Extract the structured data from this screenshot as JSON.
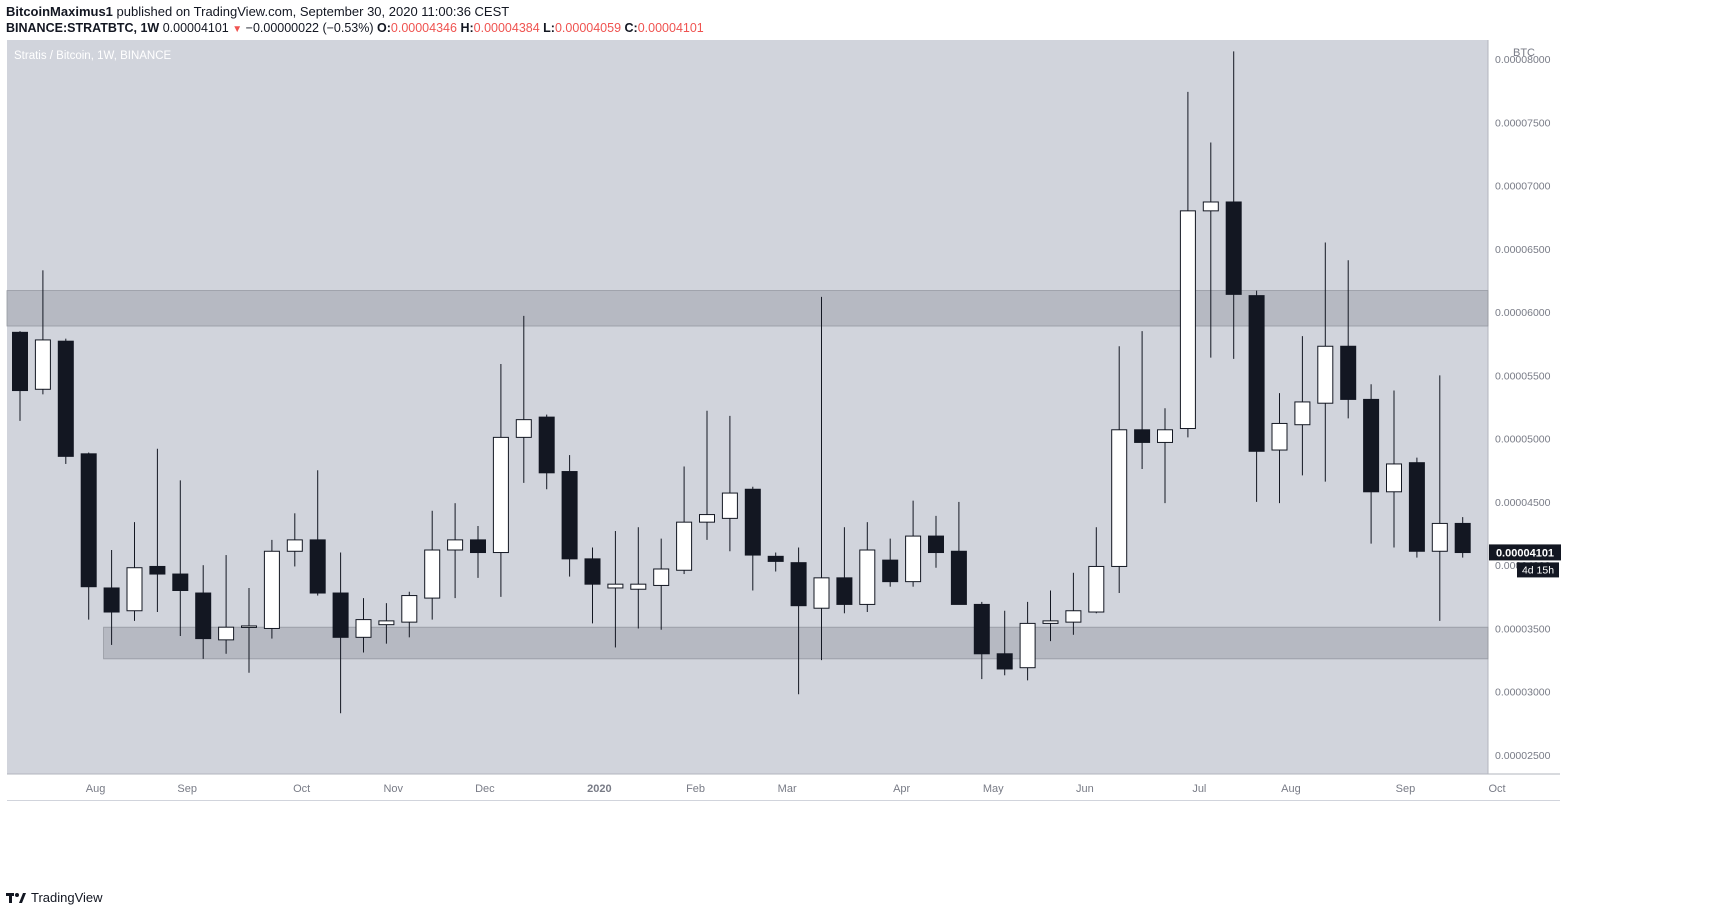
{
  "header": {
    "author": "BitcoinMaximus1",
    "published_text": "published on TradingView.com, September 30, 2020 11:00:36 CEST",
    "symbol": "BINANCE:STRATBTC, 1W",
    "last": "0.00004101",
    "change": "−0.00000022 (−0.53%)",
    "o_label": "O:",
    "o": "0.00004346",
    "h_label": "H:",
    "h": "0.00004384",
    "l_label": "L:",
    "l": "0.00004059",
    "c_label": "C:",
    "c": "0.00004101"
  },
  "footer": {
    "brand": "TradingView"
  },
  "chart_data": {
    "type": "candlestick",
    "title": "Stratis / Bitcoin, 1W, BINANCE",
    "currency_label": "BTC",
    "ylim": [
      2.35e-05,
      8.15e-05
    ],
    "y_ticks": [
      2.5e-05,
      3e-05,
      3.5e-05,
      4e-05,
      4.5e-05,
      5e-05,
      5.5e-05,
      6e-05,
      6.5e-05,
      7e-05,
      7.5e-05,
      8e-05
    ],
    "y_tick_labels": [
      "0.00002500",
      "0.00003000",
      "0.00003500",
      "0.00004000",
      "0.00004500",
      "0.00005000",
      "0.00005500",
      "0.00006000",
      "0.00006500",
      "0.00007000",
      "0.00007500",
      "0.00008000"
    ],
    "x_tick_labels": [
      {
        "label": "Aug",
        "index": 3.3
      },
      {
        "label": "Sep",
        "index": 7.3
      },
      {
        "label": "Oct",
        "index": 12.3
      },
      {
        "label": "Nov",
        "index": 16.3
      },
      {
        "label": "Dec",
        "index": 20.3
      },
      {
        "label": "2020",
        "index": 25.3
      },
      {
        "label": "Feb",
        "index": 29.5
      },
      {
        "label": "Mar",
        "index": 33.5
      },
      {
        "label": "Apr",
        "index": 38.5
      },
      {
        "label": "May",
        "index": 42.5
      },
      {
        "label": "Jun",
        "index": 46.5
      },
      {
        "label": "Jul",
        "index": 51.5
      },
      {
        "label": "Aug",
        "index": 55.5
      },
      {
        "label": "Sep",
        "index": 60.5
      },
      {
        "label": "Oct",
        "index": 64.5
      }
    ],
    "zones": [
      {
        "from": 5.89e-05,
        "to": 6.17e-05,
        "start_index": -1
      },
      {
        "from": 3.26e-05,
        "to": 3.51e-05,
        "start_index": 4
      }
    ],
    "price_label": "0.00004101",
    "countdown_label": "4d 15h",
    "last_price": 4.101e-05,
    "candles": [
      {
        "o": 5.84e-05,
        "h": 5.85e-05,
        "l": 5.14e-05,
        "c": 5.38e-05
      },
      {
        "o": 5.39e-05,
        "h": 6.33e-05,
        "l": 5.35e-05,
        "c": 5.78e-05
      },
      {
        "o": 5.77e-05,
        "h": 5.79e-05,
        "l": 4.8e-05,
        "c": 4.86e-05
      },
      {
        "o": 4.88e-05,
        "h": 4.89e-05,
        "l": 3.57e-05,
        "c": 3.83e-05
      },
      {
        "o": 3.82e-05,
        "h": 4.12e-05,
        "l": 3.37e-05,
        "c": 3.63e-05
      },
      {
        "o": 3.64e-05,
        "h": 4.34e-05,
        "l": 3.56e-05,
        "c": 3.98e-05
      },
      {
        "o": 3.99e-05,
        "h": 4.92e-05,
        "l": 3.63e-05,
        "c": 3.93e-05
      },
      {
        "o": 3.93e-05,
        "h": 4.67e-05,
        "l": 3.44e-05,
        "c": 3.8e-05
      },
      {
        "o": 3.78e-05,
        "h": 4e-05,
        "l": 3.26e-05,
        "c": 3.42e-05
      },
      {
        "o": 3.41e-05,
        "h": 4.08e-05,
        "l": 3.3e-05,
        "c": 3.51e-05
      },
      {
        "o": 3.51e-05,
        "h": 3.82e-05,
        "l": 3.15e-05,
        "c": 3.52e-05
      },
      {
        "o": 3.5e-05,
        "h": 4.2e-05,
        "l": 3.42e-05,
        "c": 4.11e-05
      },
      {
        "o": 4.11e-05,
        "h": 4.41e-05,
        "l": 3.99e-05,
        "c": 4.2e-05
      },
      {
        "o": 4.2e-05,
        "h": 4.75e-05,
        "l": 3.76e-05,
        "c": 3.78e-05
      },
      {
        "o": 3.78e-05,
        "h": 4.1e-05,
        "l": 2.83e-05,
        "c": 3.43e-05
      },
      {
        "o": 3.43e-05,
        "h": 3.74e-05,
        "l": 3.31e-05,
        "c": 3.57e-05
      },
      {
        "o": 3.53e-05,
        "h": 3.7e-05,
        "l": 3.38e-05,
        "c": 3.56e-05
      },
      {
        "o": 3.55e-05,
        "h": 3.79e-05,
        "l": 3.43e-05,
        "c": 3.76e-05
      },
      {
        "o": 3.74e-05,
        "h": 4.43e-05,
        "l": 3.57e-05,
        "c": 4.12e-05
      },
      {
        "o": 4.12e-05,
        "h": 4.49e-05,
        "l": 3.74e-05,
        "c": 4.2e-05
      },
      {
        "o": 4.2e-05,
        "h": 4.31e-05,
        "l": 3.9e-05,
        "c": 4.1e-05
      },
      {
        "o": 4.1e-05,
        "h": 5.59e-05,
        "l": 3.75e-05,
        "c": 5.01e-05
      },
      {
        "o": 5.01e-05,
        "h": 5.97e-05,
        "l": 4.65e-05,
        "c": 5.15e-05
      },
      {
        "o": 5.17e-05,
        "h": 5.19e-05,
        "l": 4.6e-05,
        "c": 4.73e-05
      },
      {
        "o": 4.74e-05,
        "h": 4.87e-05,
        "l": 3.91e-05,
        "c": 4.05e-05
      },
      {
        "o": 4.05e-05,
        "h": 4.14e-05,
        "l": 3.54e-05,
        "c": 3.85e-05
      },
      {
        "o": 3.82e-05,
        "h": 4.27e-05,
        "l": 3.35e-05,
        "c": 3.85e-05
      },
      {
        "o": 3.81e-05,
        "h": 4.3e-05,
        "l": 3.5e-05,
        "c": 3.85e-05
      },
      {
        "o": 3.84e-05,
        "h": 4.21e-05,
        "l": 3.49e-05,
        "c": 3.97e-05
      },
      {
        "o": 3.96e-05,
        "h": 4.78e-05,
        "l": 3.93e-05,
        "c": 4.34e-05
      },
      {
        "o": 4.34e-05,
        "h": 5.22e-05,
        "l": 4.2e-05,
        "c": 4.4e-05
      },
      {
        "o": 4.37e-05,
        "h": 5.18e-05,
        "l": 4.11e-05,
        "c": 4.57e-05
      },
      {
        "o": 4.6e-05,
        "h": 4.62e-05,
        "l": 3.8e-05,
        "c": 4.08e-05
      },
      {
        "o": 4.07e-05,
        "h": 4.1e-05,
        "l": 3.95e-05,
        "c": 4.03e-05
      },
      {
        "o": 4.02e-05,
        "h": 4.14e-05,
        "l": 2.98e-05,
        "c": 3.68e-05
      },
      {
        "o": 3.66e-05,
        "h": 6.12e-05,
        "l": 3.25e-05,
        "c": 3.9e-05
      },
      {
        "o": 3.9e-05,
        "h": 4.3e-05,
        "l": 3.62e-05,
        "c": 3.69e-05
      },
      {
        "o": 3.69e-05,
        "h": 4.34e-05,
        "l": 3.63e-05,
        "c": 4.12e-05
      },
      {
        "o": 4.04e-05,
        "h": 4.21e-05,
        "l": 3.83e-05,
        "c": 3.87e-05
      },
      {
        "o": 3.87e-05,
        "h": 4.51e-05,
        "l": 3.83e-05,
        "c": 4.23e-05
      },
      {
        "o": 4.23e-05,
        "h": 4.39e-05,
        "l": 3.98e-05,
        "c": 4.1e-05
      },
      {
        "o": 4.11e-05,
        "h": 4.5e-05,
        "l": 3.69e-05,
        "c": 3.69e-05
      },
      {
        "o": 3.69e-05,
        "h": 3.71e-05,
        "l": 3.1e-05,
        "c": 3.3e-05
      },
      {
        "o": 3.3e-05,
        "h": 3.64e-05,
        "l": 3.13e-05,
        "c": 3.18e-05
      },
      {
        "o": 3.19e-05,
        "h": 3.71e-05,
        "l": 3.09e-05,
        "c": 3.54e-05
      },
      {
        "o": 3.54e-05,
        "h": 3.8e-05,
        "l": 3.4e-05,
        "c": 3.56e-05
      },
      {
        "o": 3.55e-05,
        "h": 3.94e-05,
        "l": 3.45e-05,
        "c": 3.64e-05
      },
      {
        "o": 3.63e-05,
        "h": 4.3e-05,
        "l": 3.62e-05,
        "c": 3.99e-05
      },
      {
        "o": 3.99e-05,
        "h": 5.73e-05,
        "l": 3.78e-05,
        "c": 5.07e-05
      },
      {
        "o": 5.07e-05,
        "h": 5.85e-05,
        "l": 4.76e-05,
        "c": 4.97e-05
      },
      {
        "o": 4.97e-05,
        "h": 5.24e-05,
        "l": 4.49e-05,
        "c": 5.07e-05
      },
      {
        "o": 5.08e-05,
        "h": 7.74e-05,
        "l": 5.01e-05,
        "c": 6.8e-05
      },
      {
        "o": 6.8e-05,
        "h": 7.34e-05,
        "l": 5.64e-05,
        "c": 6.87e-05
      },
      {
        "o": 6.87e-05,
        "h": 8.06e-05,
        "l": 5.63e-05,
        "c": 6.14e-05
      },
      {
        "o": 6.13e-05,
        "h": 6.17e-05,
        "l": 4.5e-05,
        "c": 4.9e-05
      },
      {
        "o": 4.91e-05,
        "h": 5.36e-05,
        "l": 4.49e-05,
        "c": 5.12e-05
      },
      {
        "o": 5.11e-05,
        "h": 5.81e-05,
        "l": 4.71e-05,
        "c": 5.29e-05
      },
      {
        "o": 5.28e-05,
        "h": 6.55e-05,
        "l": 4.66e-05,
        "c": 5.73e-05
      },
      {
        "o": 5.73e-05,
        "h": 6.41e-05,
        "l": 5.16e-05,
        "c": 5.31e-05
      },
      {
        "o": 5.31e-05,
        "h": 5.43e-05,
        "l": 4.17e-05,
        "c": 4.58e-05
      },
      {
        "o": 4.58e-05,
        "h": 5.38e-05,
        "l": 4.14e-05,
        "c": 4.8e-05
      },
      {
        "o": 4.81e-05,
        "h": 4.85e-05,
        "l": 4.06e-05,
        "c": 4.11e-05
      },
      {
        "o": 4.11e-05,
        "h": 5.5e-05,
        "l": 3.56e-05,
        "c": 4.33e-05
      },
      {
        "o": 4.33e-05,
        "h": 4.38e-05,
        "l": 4.06e-05,
        "c": 4.1e-05
      }
    ]
  }
}
